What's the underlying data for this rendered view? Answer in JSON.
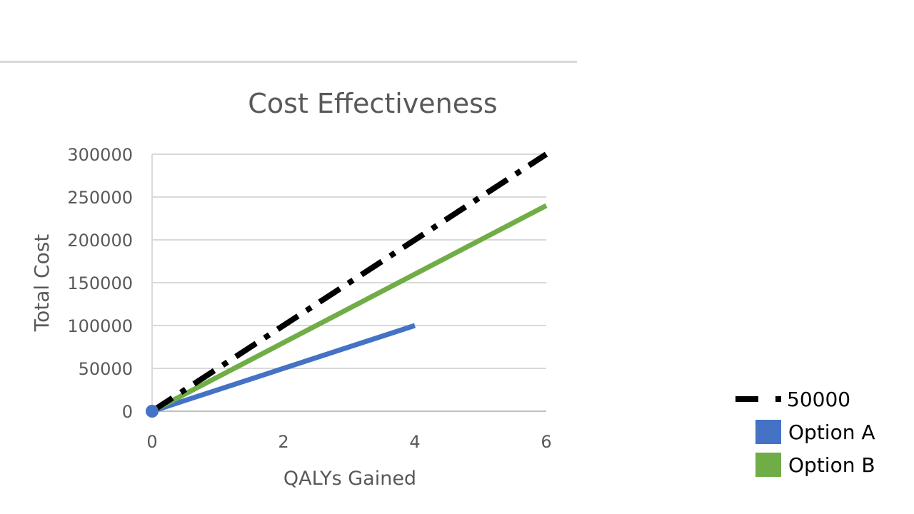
{
  "chart_data": {
    "type": "line",
    "title": "Cost Effectiveness",
    "xlabel": "QALYs Gained",
    "ylabel": "Total Cost",
    "xlim": [
      0,
      6
    ],
    "ylim": [
      0,
      300000
    ],
    "x_ticks": [
      0,
      2,
      4,
      6
    ],
    "y_ticks": [
      0,
      50000,
      100000,
      150000,
      200000,
      250000,
      300000
    ],
    "grid": true,
    "legend_position": "bottom-right",
    "series": [
      {
        "name": "50000",
        "color": "#000000",
        "style": "dash-dot",
        "points": [
          [
            0,
            0
          ],
          [
            6,
            300000
          ]
        ]
      },
      {
        "name": "Option A",
        "color": "#4472c4",
        "style": "solid",
        "points": [
          [
            0,
            0
          ],
          [
            4,
            100000
          ]
        ]
      },
      {
        "name": "Option B",
        "color": "#70ad47",
        "style": "solid",
        "points": [
          [
            0,
            0
          ],
          [
            6,
            240000
          ]
        ]
      }
    ],
    "markers": [
      {
        "x": 0,
        "y": 0,
        "color": "#4472c4"
      }
    ]
  }
}
